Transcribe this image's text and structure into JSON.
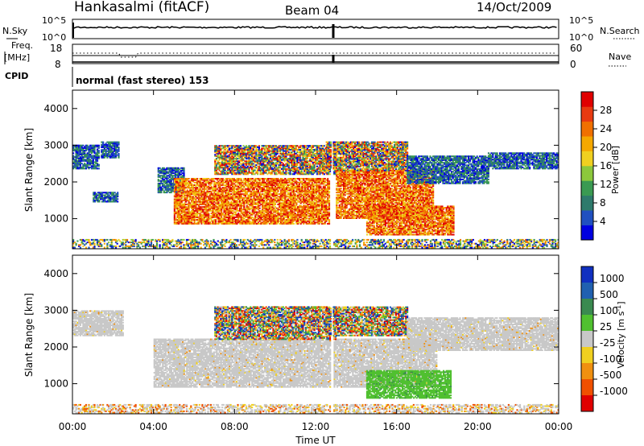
{
  "header": {
    "title": "Hankasalmi (fitACF)",
    "beam": "Beam 04",
    "date": "14/Oct/2009"
  },
  "status_panel": {
    "nsky_label": "N.Sky",
    "nsearch_label": "N.Search",
    "nsky_ticks": [
      "10^5",
      "10^0"
    ],
    "nsearch_ticks": [
      "10^5",
      "10^0"
    ],
    "freq_label_1": "Freq.",
    "freq_label_2": "[MHz]",
    "freq_ticks": [
      "18",
      "8"
    ],
    "nave_label": "Nave",
    "nave_ticks": [
      "60",
      "0"
    ],
    "cpid_label": "CPID",
    "cpid_value": "normal (fast stereo) 153"
  },
  "chart_data": [
    {
      "type": "heatmap",
      "panel": "power",
      "ylabel": "Slant Range [km]",
      "xlabel": "",
      "ylim": [
        180,
        4500
      ],
      "yticks": [
        "1000",
        "2000",
        "3000",
        "4000"
      ],
      "xlim": [
        0,
        24
      ],
      "xticks": [
        "00:00",
        "04:00",
        "08:00",
        "12:00",
        "16:00",
        "20:00",
        "00:00"
      ],
      "colorbar": {
        "label": "Power [dB]",
        "ticks": [
          "4",
          "8",
          "12",
          "16",
          "20",
          "24",
          "28"
        ],
        "range": [
          0,
          32
        ],
        "colors": [
          "#0000e0",
          "#2050c0",
          "#2e7a6c",
          "#3a9a52",
          "#8cc83c",
          "#f0d020",
          "#f5a800",
          "#f07000",
          "#e83a10",
          "#e00000"
        ]
      },
      "regions": [
        {
          "t0": 0.0,
          "t1": 24.0,
          "r0": 200,
          "r1": 420,
          "level": "mixed"
        },
        {
          "t0": 0.0,
          "t1": 1.3,
          "r0": 2350,
          "r1": 3000,
          "level": "low"
        },
        {
          "t0": 1.4,
          "t1": 2.3,
          "r0": 2650,
          "r1": 3100,
          "level": "low"
        },
        {
          "t0": 1.0,
          "t1": 2.2,
          "r0": 1450,
          "r1": 1700,
          "level": "low"
        },
        {
          "t0": 4.2,
          "t1": 5.5,
          "r0": 1700,
          "r1": 2400,
          "level": "low"
        },
        {
          "t0": 5.0,
          "t1": 12.7,
          "r0": 850,
          "r1": 2100,
          "level": "high"
        },
        {
          "t0": 7.0,
          "t1": 13.0,
          "r0": 2200,
          "r1": 3000,
          "level": "mid"
        },
        {
          "t0": 13.0,
          "t1": 17.8,
          "r0": 1000,
          "r1": 2300,
          "level": "high"
        },
        {
          "t0": 12.5,
          "t1": 16.5,
          "r0": 2300,
          "r1": 3100,
          "level": "mid"
        },
        {
          "t0": 14.5,
          "t1": 18.8,
          "r0": 550,
          "r1": 1350,
          "level": "high"
        },
        {
          "t0": 16.5,
          "t1": 20.5,
          "r0": 1950,
          "r1": 2700,
          "level": "low"
        },
        {
          "t0": 20.5,
          "t1": 24.0,
          "r0": 2350,
          "r1": 2800,
          "level": "low"
        }
      ]
    },
    {
      "type": "heatmap",
      "panel": "velocity",
      "ylabel": "Slant Range [km]",
      "xlabel": "Time UT",
      "ylim": [
        180,
        4500
      ],
      "yticks": [
        "1000",
        "2000",
        "3000",
        "4000"
      ],
      "xlim": [
        0,
        24
      ],
      "xticks": [
        "00:00",
        "04:00",
        "08:00",
        "12:00",
        "16:00",
        "20:00",
        "00:00"
      ],
      "colorbar": {
        "label": "Velocity [m s^-1]",
        "ticks": [
          "1000",
          "500",
          "100",
          "25",
          "-25",
          "-100",
          "-500",
          "-1000"
        ],
        "colors": [
          "#1030c0",
          "#2060b0",
          "#3a8a50",
          "#50c030",
          "#c8c8c8",
          "#f0d020",
          "#f09010",
          "#f05000",
          "#e00000"
        ]
      },
      "regions": [
        {
          "t0": 0.0,
          "t1": 24.0,
          "r0": 200,
          "r1": 420,
          "level": "ground"
        },
        {
          "t0": 4.0,
          "t1": 18.0,
          "r0": 900,
          "r1": 2200,
          "level": "grey"
        },
        {
          "t0": 7.0,
          "t1": 13.0,
          "r0": 2200,
          "r1": 3100,
          "level": "mixed"
        },
        {
          "t0": 12.5,
          "t1": 16.5,
          "r0": 2300,
          "r1": 3100,
          "level": "mixed"
        },
        {
          "t0": 14.5,
          "t1": 18.7,
          "r0": 600,
          "r1": 1350,
          "level": "green"
        },
        {
          "t0": 16.5,
          "t1": 24.0,
          "r0": 1900,
          "r1": 2800,
          "level": "grey"
        },
        {
          "t0": 0.0,
          "t1": 2.5,
          "r0": 2300,
          "r1": 3000,
          "level": "grey"
        }
      ]
    }
  ]
}
